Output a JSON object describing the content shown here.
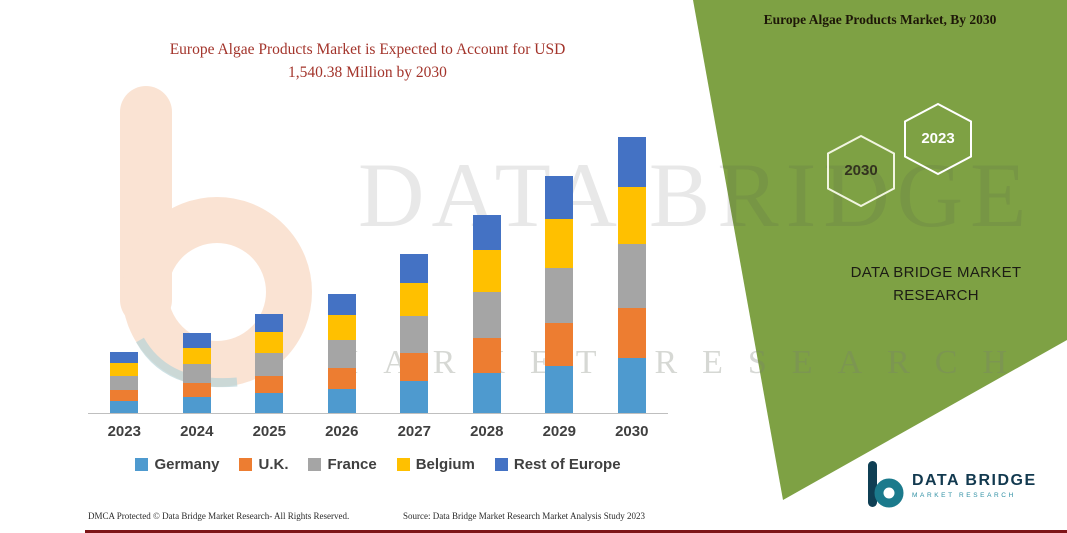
{
  "title": {
    "line1": "Europe Algae Products Market is Expected to Account for USD",
    "line2": "1,540.38 Million by 2030"
  },
  "banner": {
    "title": "Europe Algae Products Market, By 2030"
  },
  "header": {
    "hexagons": [
      {
        "year": "2030"
      },
      {
        "year": "2023"
      }
    ]
  },
  "brand": {
    "line1": "DATA BRIDGE MARKET",
    "line2": "RESEARCH"
  },
  "watermark": {
    "brand": "DATA BRIDGE",
    "tagline": "MARKET RESEARCH"
  },
  "chart_data": {
    "type": "bar",
    "stacked": true,
    "title": "Europe Algae Products Market is Expected to Account for USD 1,540.38 Million by 2030",
    "unit": "USD Million",
    "categories": [
      "2023",
      "2024",
      "2025",
      "2026",
      "2027",
      "2028",
      "2029",
      "2030"
    ],
    "series": [
      {
        "name": "Germany",
        "color": "#4E9ACF",
        "values": [
          68,
          89,
          110,
          133,
          177,
          221,
          264,
          308
        ]
      },
      {
        "name": "U.K.",
        "color": "#ED7D31",
        "values": [
          61,
          80,
          99,
          120,
          159,
          199,
          238,
          277
        ]
      },
      {
        "name": "France",
        "color": "#A5A5A5",
        "values": [
          78,
          102,
          127,
          153,
          204,
          254,
          304,
          354
        ]
      },
      {
        "name": "Belgium",
        "color": "#FFC000",
        "values": [
          71,
          93,
          116,
          140,
          186,
          232,
          277,
          323
        ]
      },
      {
        "name": "Rest of Europe",
        "color": "#4472C4",
        "values": [
          62,
          81,
          98,
          119,
          159,
          199,
          237,
          278.38
        ]
      }
    ],
    "totals": [
      340,
      445,
      550,
      665,
      885,
      1105,
      1320,
      1540.38
    ],
    "ylim": [
      0,
      1560
    ],
    "xlabel": "",
    "ylabel": "",
    "grid": false,
    "legend_position": "bottom"
  },
  "footer": {
    "dmca": "DMCA Protected © Data Bridge Market Research-  All Rights Reserved.",
    "source": "Source: Data Bridge Market Research  Market Analysis Study 2023"
  },
  "logo": {
    "name": "DATA BRIDGE",
    "tagline": "MARKET RESEARCH"
  },
  "colors": {
    "band": "#7EA144",
    "title_text": "#A3342B",
    "bottom_bar": "#7E1518",
    "axis_label": "#404040"
  }
}
